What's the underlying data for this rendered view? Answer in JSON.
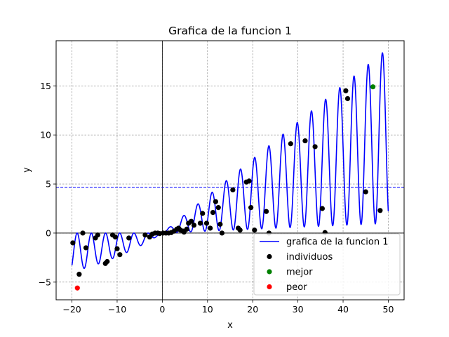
{
  "chart_data": {
    "type": "line",
    "title": "Grafica de la funcion 1",
    "xlabel": "x",
    "ylabel": "y",
    "xlim": [
      -23.5,
      53.5
    ],
    "ylim": [
      -6.8,
      19.6
    ],
    "xticks": [
      -20,
      -10,
      0,
      10,
      20,
      30,
      40,
      50
    ],
    "xtick_labels": [
      "−20",
      "−10",
      "0",
      "10",
      "20",
      "30",
      "40",
      "50"
    ],
    "yticks": [
      -5,
      0,
      5,
      10,
      15
    ],
    "ytick_labels": [
      "−5",
      "0",
      "5",
      "10",
      "15"
    ],
    "grid": true,
    "grid_style": "dashed",
    "reference_lines": {
      "horizontal_dashed_y": 4.65,
      "axis_x_zero": true,
      "axis_y_zero": true
    },
    "function": {
      "name": "grafica de la funcion 1",
      "color": "#0000ff",
      "x_range": [
        -20,
        50
      ]
    },
    "legend": {
      "placement": "lower-right",
      "entries": [
        {
          "label": "grafica de la funcion 1",
          "kind": "line",
          "color": "#0000ff"
        },
        {
          "label": "individuos",
          "kind": "marker",
          "color": "#000000"
        },
        {
          "label": "mejor",
          "kind": "marker",
          "color": "#008000"
        },
        {
          "label": "peor",
          "kind": "marker",
          "color": "#ff0000"
        }
      ]
    },
    "series": [
      {
        "name": "individuos",
        "type": "scatter",
        "color": "#000000",
        "points": [
          [
            -19.8,
            -1.0
          ],
          [
            -18.4,
            -4.2
          ],
          [
            -17.6,
            0.0
          ],
          [
            -16.9,
            -1.5
          ],
          [
            -14.8,
            -0.5
          ],
          [
            -14.3,
            -0.2
          ],
          [
            -12.6,
            -3.1
          ],
          [
            -12.2,
            -2.9
          ],
          [
            -11.0,
            -0.2
          ],
          [
            -10.4,
            -0.4
          ],
          [
            -10.0,
            -1.6
          ],
          [
            -9.4,
            -2.2
          ],
          [
            -7.4,
            -0.5
          ],
          [
            -3.8,
            -0.2
          ],
          [
            -2.8,
            -0.4
          ],
          [
            -2.2,
            -0.1
          ],
          [
            -1.6,
            0.0
          ],
          [
            -1.0,
            0.0
          ],
          [
            -0.6,
            -0.05
          ],
          [
            0.2,
            0.0
          ],
          [
            0.8,
            0.0
          ],
          [
            1.4,
            0.0
          ],
          [
            2.0,
            0.05
          ],
          [
            2.6,
            0.2
          ],
          [
            3.2,
            0.4
          ],
          [
            3.6,
            0.5
          ],
          [
            4.0,
            0.3
          ],
          [
            4.6,
            0.2
          ],
          [
            4.8,
            0.1
          ],
          [
            5.4,
            0.4
          ],
          [
            5.8,
            1.0
          ],
          [
            6.4,
            1.2
          ],
          [
            7.0,
            0.8
          ],
          [
            8.4,
            1.0
          ],
          [
            8.9,
            2.0
          ],
          [
            9.8,
            1.0
          ],
          [
            10.6,
            0.5
          ],
          [
            11.2,
            2.1
          ],
          [
            11.8,
            3.2
          ],
          [
            12.4,
            2.6
          ],
          [
            12.8,
            0.9
          ],
          [
            13.2,
            0.0
          ],
          [
            15.6,
            4.4
          ],
          [
            16.8,
            0.5
          ],
          [
            17.2,
            0.3
          ],
          [
            18.6,
            5.2
          ],
          [
            19.2,
            5.3
          ],
          [
            19.6,
            2.6
          ],
          [
            20.4,
            0.3
          ],
          [
            23.0,
            2.2
          ],
          [
            23.6,
            0.0
          ],
          [
            28.4,
            9.1
          ],
          [
            31.6,
            9.4
          ],
          [
            33.8,
            8.8
          ],
          [
            35.4,
            2.5
          ],
          [
            36.0,
            0.05
          ],
          [
            40.6,
            14.5
          ],
          [
            41.0,
            13.7
          ],
          [
            45.0,
            4.2
          ],
          [
            48.2,
            2.3
          ]
        ]
      },
      {
        "name": "mejor",
        "type": "scatter",
        "color": "#008000",
        "points": [
          [
            46.6,
            14.9
          ]
        ]
      },
      {
        "name": "peor",
        "type": "scatter",
        "color": "#ff0000",
        "points": [
          [
            -18.8,
            -5.6
          ]
        ]
      }
    ]
  }
}
